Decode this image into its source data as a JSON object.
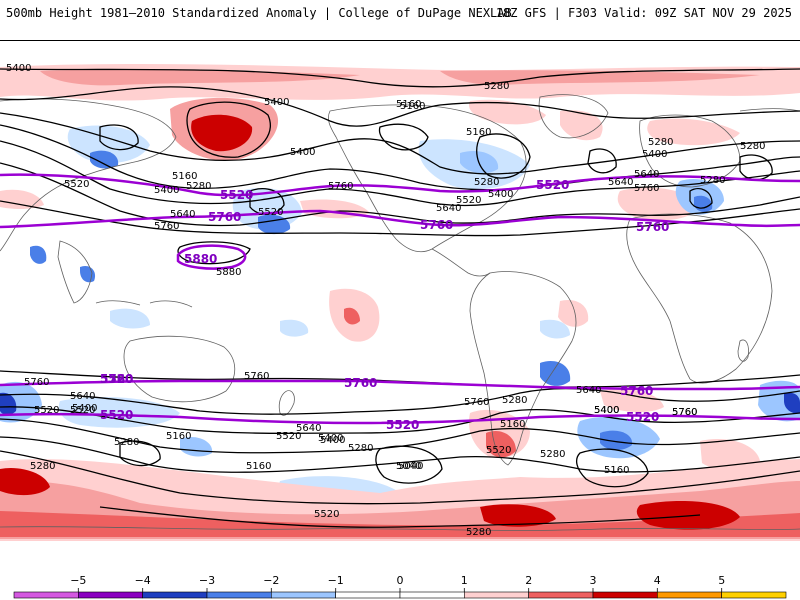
{
  "header": {
    "title_left": "500mb Height 1981–2010 Standardized Anomaly | College of DuPage NEXLAB",
    "title_right": "18Z GFS | F303 Valid: 09Z SAT NOV 29 2025"
  },
  "colors": {
    "purple": "#9b00d3",
    "contour": "#000000",
    "pos1": "#ffd0d0",
    "pos2": "#f6a0a0",
    "pos3": "#ee6060",
    "pos4": "#cc0000",
    "neg1": "#cce4ff",
    "neg2": "#9cc6ff",
    "neg3": "#4a7fe8",
    "neg4": "#1f3fc0",
    "coast": "#606060"
  },
  "colorbar": {
    "ticks": [
      "−5",
      "−4",
      "−3",
      "−2",
      "−1",
      "0",
      "1",
      "2",
      "3",
      "4",
      "5"
    ],
    "segments": [
      "#d458e0",
      "#8a00c0",
      "#1f3fc0",
      "#4a7fe8",
      "#9cc6ff",
      "#ffffff",
      "#ffffff",
      "#ffd0d0",
      "#ee6060",
      "#cc0000",
      "#ff9900",
      "#ffd000"
    ]
  },
  "labels": {
    "black": [
      "5400",
      "5400",
      "5280",
      "5160",
      "5160",
      "5280",
      "5400",
      "5520",
      "5160",
      "5280",
      "5400",
      "5640",
      "5760",
      "5520",
      "5640",
      "5760",
      "5880",
      "5280",
      "5400",
      "5520",
      "5640",
      "5400",
      "5760",
      "5280",
      "5640",
      "5760",
      "5520",
      "5760",
      "5760",
      "5640",
      "5400",
      "5520",
      "5280",
      "5160",
      "5760",
      "5640",
      "5520",
      "5400",
      "5280",
      "5400",
      "5520",
      "5640",
      "5280",
      "5160",
      "5040",
      "5280",
      "5160",
      "5280",
      "5520",
      "5280",
      "5160",
      "5400",
      "5760",
      "5280",
      "5160",
      "5040",
      "5400"
    ],
    "purple": [
      "5520",
      "5760",
      "5880",
      "5520",
      "5760",
      "5520",
      "5760",
      "5760",
      "5760",
      "5760",
      "5520",
      "5520",
      "5520"
    ]
  }
}
